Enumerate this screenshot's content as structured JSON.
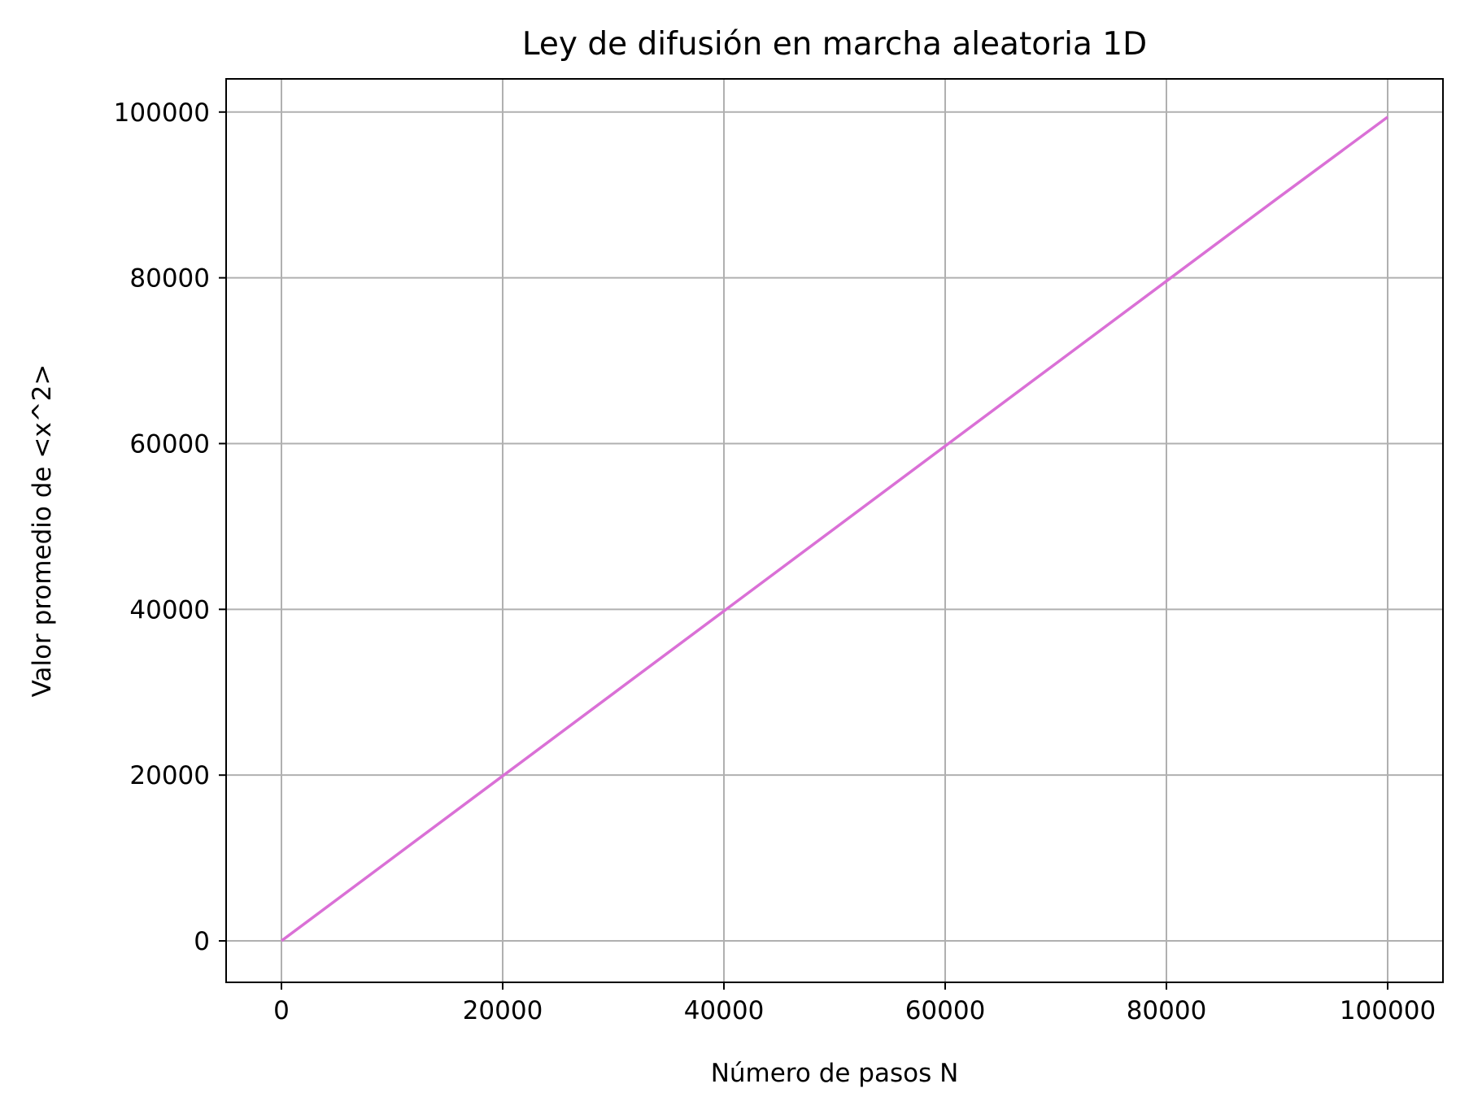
{
  "chart_data": {
    "type": "line",
    "title": "Ley de difusión en marcha aleatoria 1D",
    "xlabel": "Número de pasos N",
    "ylabel": "Valor promedio de <x^2>",
    "xlim": [
      -5000,
      105000
    ],
    "ylim": [
      -5000,
      104000
    ],
    "xticks": [
      0,
      20000,
      40000,
      60000,
      80000,
      100000
    ],
    "yticks": [
      0,
      20000,
      40000,
      60000,
      80000,
      100000
    ],
    "xtick_labels": [
      "0",
      "20000",
      "40000",
      "60000",
      "80000",
      "100000"
    ],
    "ytick_labels": [
      "0",
      "20000",
      "40000",
      "60000",
      "80000",
      "100000"
    ],
    "grid": true,
    "legend": "none",
    "series": [
      {
        "color": "#DA70D6",
        "x": [
          0,
          10000,
          20000,
          30000,
          40000,
          50000,
          60000,
          70000,
          80000,
          90000,
          100000
        ],
        "y": [
          0,
          9950,
          19900,
          29850,
          39800,
          49750,
          59700,
          69650,
          79600,
          89550,
          99400
        ]
      }
    ]
  }
}
